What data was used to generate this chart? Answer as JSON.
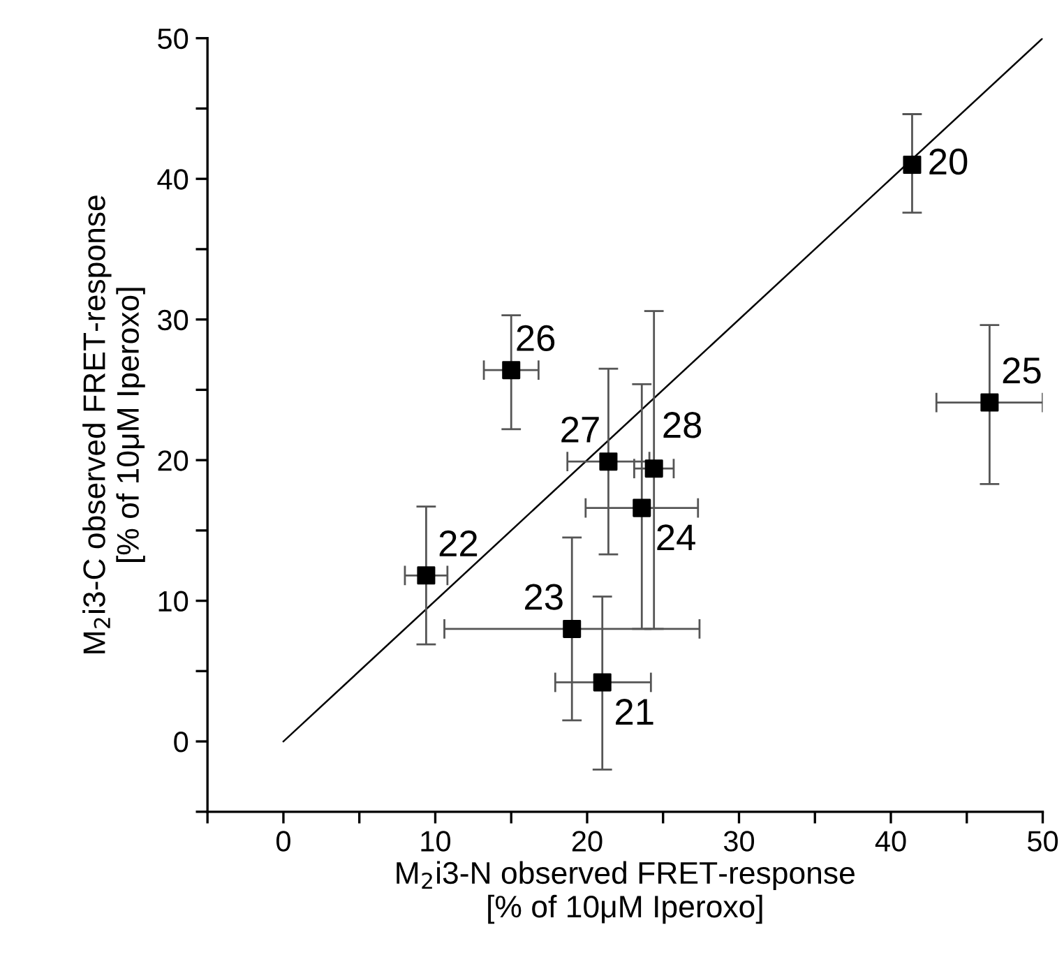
{
  "chart_data": {
    "type": "scatter",
    "xlabel": "M$_{2}$i3-N observed FRET-response\n[% of 10μM Iperoxo]",
    "ylabel": "M$_{2}$i3-C observed FRET-response\n[% of 10μM Iperoxo]",
    "xlim": [
      -5,
      50
    ],
    "ylim": [
      -5,
      50
    ],
    "xticks": [
      {
        "value": -5,
        "label": null
      },
      0,
      {
        "value": 5,
        "label": null
      },
      10,
      {
        "value": 15,
        "label": null
      },
      20,
      {
        "value": 25,
        "label": null
      },
      30,
      {
        "value": 35,
        "label": null
      },
      40,
      {
        "value": 45,
        "label": null
      },
      50
    ],
    "yticks": [
      {
        "value": -5,
        "label": null
      },
      0,
      {
        "value": 5,
        "label": null
      },
      10,
      {
        "value": 15,
        "label": null
      },
      20,
      {
        "value": 25,
        "label": null
      },
      30,
      {
        "value": 35,
        "label": null
      },
      40,
      {
        "value": 45,
        "label": null
      },
      50
    ],
    "grid": false,
    "series": [
      {
        "marker": "square",
        "color": "#000000",
        "x": [
          41.4,
          21.0,
          9.4,
          19.0,
          23.6,
          46.5,
          15.0,
          21.4,
          24.4
        ],
        "values": [
          41.0,
          4.2,
          11.8,
          8.0,
          16.6,
          24.1,
          26.4,
          19.9,
          19.4
        ],
        "errors": [
          [
            37.6,
            44.6
          ],
          [
            -2.0,
            10.3
          ],
          [
            6.9,
            16.7
          ],
          [
            1.5,
            14.5
          ],
          [
            8.0,
            25.4
          ],
          [
            18.3,
            29.6
          ],
          [
            22.2,
            30.3
          ],
          [
            13.3,
            26.5
          ],
          [
            8.0,
            30.6
          ]
        ],
        "xerrors": [
          null,
          [
            17.9,
            24.2
          ],
          [
            8.0,
            10.8
          ],
          [
            10.6,
            27.4
          ],
          [
            19.9,
            27.3
          ],
          [
            43.0,
            50.0
          ],
          [
            13.2,
            16.8
          ],
          [
            18.7,
            24.1
          ],
          [
            23.1,
            25.7
          ]
        ]
      },
      {
        "type": "line",
        "color": "#000000",
        "x": [
          0,
          50
        ],
        "values": [
          0,
          50
        ]
      }
    ],
    "annotations": [
      {
        "text": "20",
        "x": 41.4,
        "y": 41.0
      },
      {
        "text": "21",
        "x": 21.0,
        "y": 4.2
      },
      {
        "text": "22",
        "x": 9.4,
        "y": 11.8
      },
      {
        "text": "23",
        "x": 19.0,
        "y": 8.0
      },
      {
        "text": "24",
        "x": 23.6,
        "y": 16.6
      },
      {
        "text": "25",
        "x": 46.5,
        "y": 24.1
      },
      {
        "text": "26",
        "x": 15.0,
        "y": 26.4
      },
      {
        "text": "27",
        "x": 21.4,
        "y": 19.9
      },
      {
        "text": "28",
        "x": 24.4,
        "y": 19.4
      }
    ]
  }
}
